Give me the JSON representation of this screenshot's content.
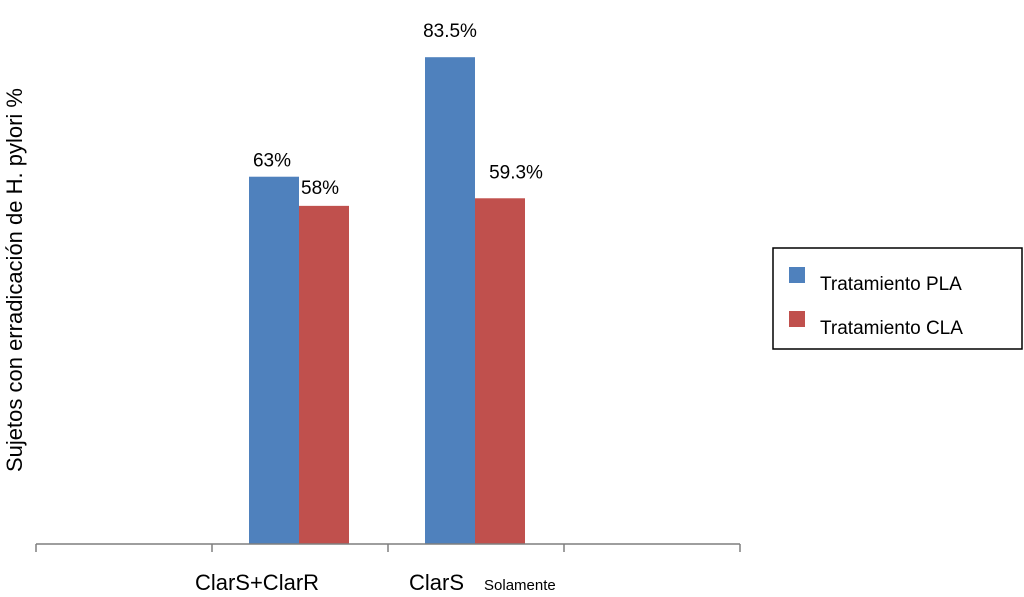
{
  "chart_data": {
    "type": "bar",
    "title": "",
    "xlabel": "",
    "ylabel": "Sujetos con erradicación de H. pylori  %",
    "ylim": [
      0,
      100
    ],
    "grid": false,
    "legend_position": "right",
    "categories": [
      {
        "main": "ClarS+ClarR",
        "sub": ""
      },
      {
        "main": "ClarS",
        "sub": "Solamente"
      }
    ],
    "series": [
      {
        "name": "Tratamiento PLA",
        "color": "#4f81bd",
        "values": [
          63,
          83.5
        ],
        "labels": [
          "63%",
          "83.5%"
        ]
      },
      {
        "name": "Tratamiento CLA",
        "color": "#c0504d",
        "values": [
          58,
          59.3
        ],
        "labels": [
          "58%",
          "59.3%"
        ]
      }
    ]
  }
}
